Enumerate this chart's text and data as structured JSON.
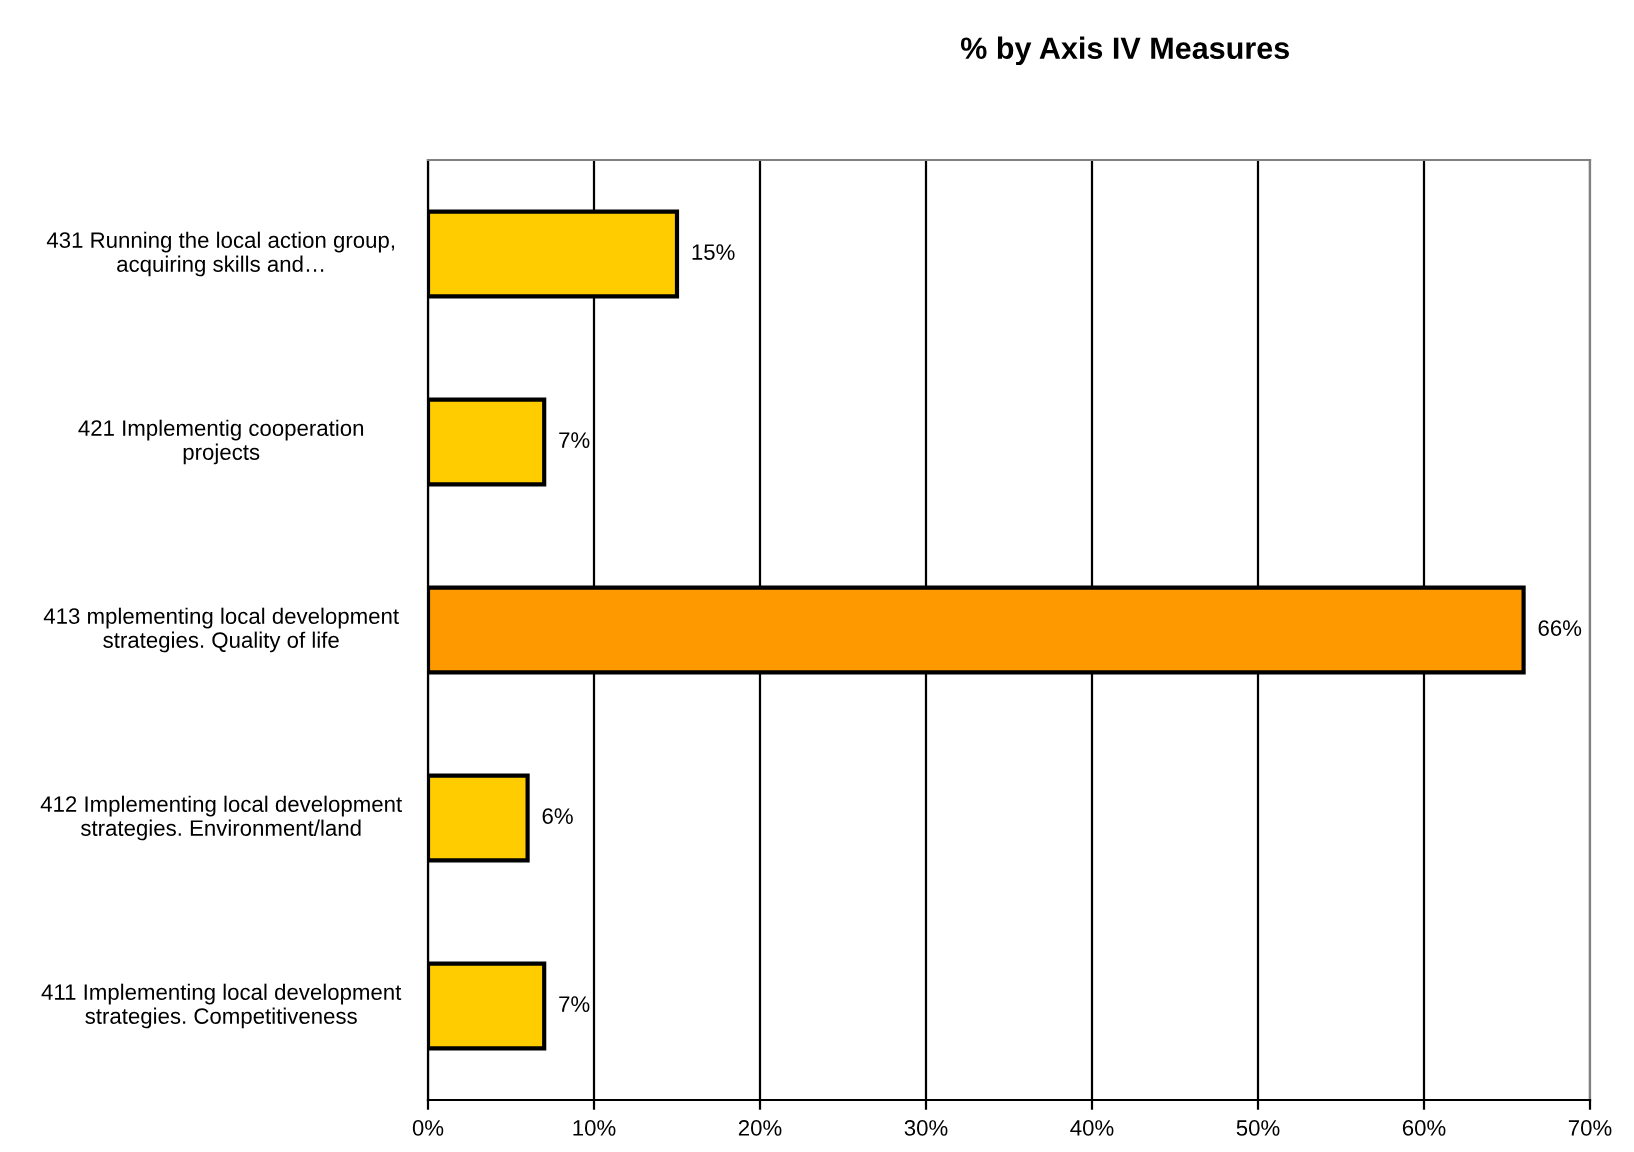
{
  "chart_data": {
    "type": "bar",
    "orientation": "horizontal",
    "title": "% by Axis IV Measures",
    "categories": [
      "431 Running the local action group,\nacquiring skills and…",
      "421 Implementig cooperation\nprojects",
      "413 mplementing local development\nstrategies. Quality of life",
      "412 Implementing local development\nstrategies. Environment/land",
      "411 Implementing local development\nstrategies. Competitiveness"
    ],
    "values": [
      15,
      7,
      66,
      6,
      7
    ],
    "colors": [
      "#ffcc00",
      "#ffcc00",
      "#ff9900",
      "#ffcc00",
      "#ffcc00"
    ],
    "value_labels": [
      "15%",
      "7%",
      "66%",
      "6%",
      "7%"
    ],
    "xlim": [
      0,
      70
    ],
    "xticks": [
      {
        "value": 0,
        "label": "0%"
      },
      {
        "value": 10,
        "label": "10%"
      },
      {
        "value": 20,
        "label": "20%"
      },
      {
        "value": 30,
        "label": "30%"
      },
      {
        "value": 40,
        "label": "40%"
      },
      {
        "value": 50,
        "label": "50%"
      },
      {
        "value": 60,
        "label": "60%"
      },
      {
        "value": 70,
        "label": "70%"
      }
    ],
    "grid": "x",
    "legend": false
  }
}
